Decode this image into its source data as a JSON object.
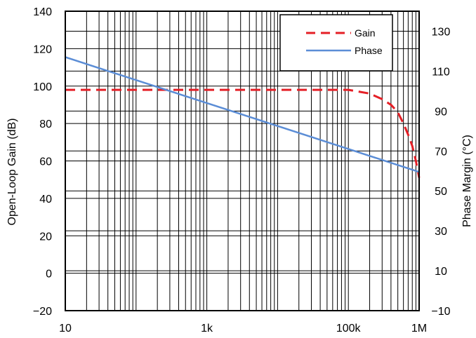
{
  "chart_data": {
    "type": "line",
    "x_scale": "log",
    "xlim": [
      10,
      1000000
    ],
    "x_ticks": [
      {
        "value": 10,
        "label": "10"
      },
      {
        "value": 1000,
        "label": "1k"
      },
      {
        "value": 100000,
        "label": "100k"
      },
      {
        "value": 1000000,
        "label": "1M"
      }
    ],
    "y_left": {
      "label": "Open-Loop Gain (dB)",
      "lim": [
        -20,
        140
      ],
      "ticks": [
        -20,
        0,
        20,
        40,
        60,
        80,
        100,
        120,
        140
      ],
      "tick_labels": [
        "−20",
        "0",
        "20",
        "40",
        "60",
        "80",
        "100",
        "120",
        "140"
      ]
    },
    "y_right": {
      "label": "Phase Margin (°C)",
      "lim": [
        -10,
        140
      ],
      "ticks": [
        -10,
        10,
        30,
        50,
        70,
        90,
        110,
        130
      ],
      "tick_labels": [
        "−10",
        "10",
        "30",
        "50",
        "70",
        "90",
        "110",
        "130"
      ]
    },
    "grid": true,
    "legend": {
      "position": "top-right",
      "entries": [
        {
          "label": "Gain",
          "color": "#e41f26",
          "style": "dashed"
        },
        {
          "label": "Phase",
          "color": "#5b8dd6",
          "style": "solid"
        }
      ]
    },
    "series": [
      {
        "name": "Gain",
        "axis": "left",
        "color": "#e41f26",
        "style": "dashed",
        "points": [
          [
            10,
            98
          ],
          [
            100,
            98
          ],
          [
            1000,
            98
          ],
          [
            10000,
            98
          ],
          [
            100000,
            98
          ],
          [
            200000,
            96
          ],
          [
            300000,
            93
          ],
          [
            400000,
            90
          ],
          [
            500000,
            86
          ],
          [
            600000,
            80
          ],
          [
            700000,
            74
          ],
          [
            800000,
            68
          ],
          [
            900000,
            60
          ],
          [
            1000000,
            51
          ]
        ]
      },
      {
        "name": "Phase",
        "axis": "right",
        "color": "#5b8dd6",
        "style": "solid",
        "points": [
          [
            10,
            117
          ],
          [
            100,
            105.5
          ],
          [
            1000,
            94
          ],
          [
            10000,
            82.5
          ],
          [
            100000,
            71
          ],
          [
            1000000,
            59.5
          ]
        ]
      }
    ]
  }
}
